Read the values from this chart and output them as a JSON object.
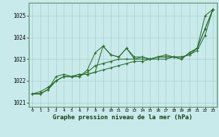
{
  "title": "Graphe pression niveau de la mer (hPa)",
  "background_color": "#c8eaea",
  "grid_color": "#a8cece",
  "line_color": "#2d6e2d",
  "xlim": [
    -0.5,
    23.5
  ],
  "ylim": [
    1020.8,
    1025.6
  ],
  "yticks": [
    1021,
    1022,
    1023,
    1024,
    1025
  ],
  "xticks": [
    0,
    1,
    2,
    3,
    4,
    5,
    6,
    7,
    8,
    9,
    10,
    11,
    12,
    13,
    14,
    15,
    16,
    17,
    18,
    19,
    20,
    21,
    22,
    23
  ],
  "series": [
    [
      1021.4,
      1021.4,
      1021.6,
      1022.2,
      1022.3,
      1022.2,
      1022.3,
      1022.3,
      1022.4,
      1023.6,
      1023.2,
      1023.1,
      1023.5,
      1023.1,
      1023.1,
      1023.0,
      1023.1,
      1023.2,
      1023.1,
      1023.0,
      1023.3,
      1023.5,
      1025.0,
      1025.3
    ],
    [
      1021.4,
      1021.4,
      1021.6,
      1022.0,
      1022.2,
      1022.2,
      1022.2,
      1022.5,
      1023.3,
      1023.6,
      1023.2,
      1023.1,
      1023.5,
      1023.0,
      1023.1,
      1023.0,
      1023.1,
      1023.1,
      1023.1,
      1023.0,
      1023.3,
      1023.5,
      1024.4,
      1025.3
    ],
    [
      1021.4,
      1021.4,
      1021.6,
      1022.0,
      1022.2,
      1022.2,
      1022.2,
      1022.4,
      1022.7,
      1022.8,
      1022.9,
      1023.0,
      1023.0,
      1023.0,
      1023.0,
      1023.0,
      1023.1,
      1023.1,
      1023.1,
      1023.1,
      1023.2,
      1023.5,
      1024.4,
      1025.3
    ],
    [
      1021.4,
      1021.5,
      1021.7,
      1022.0,
      1022.2,
      1022.2,
      1022.3,
      1022.3,
      1022.4,
      1022.5,
      1022.6,
      1022.7,
      1022.8,
      1022.9,
      1022.9,
      1023.0,
      1023.0,
      1023.0,
      1023.1,
      1023.1,
      1023.2,
      1023.4,
      1024.1,
      1025.3
    ]
  ]
}
